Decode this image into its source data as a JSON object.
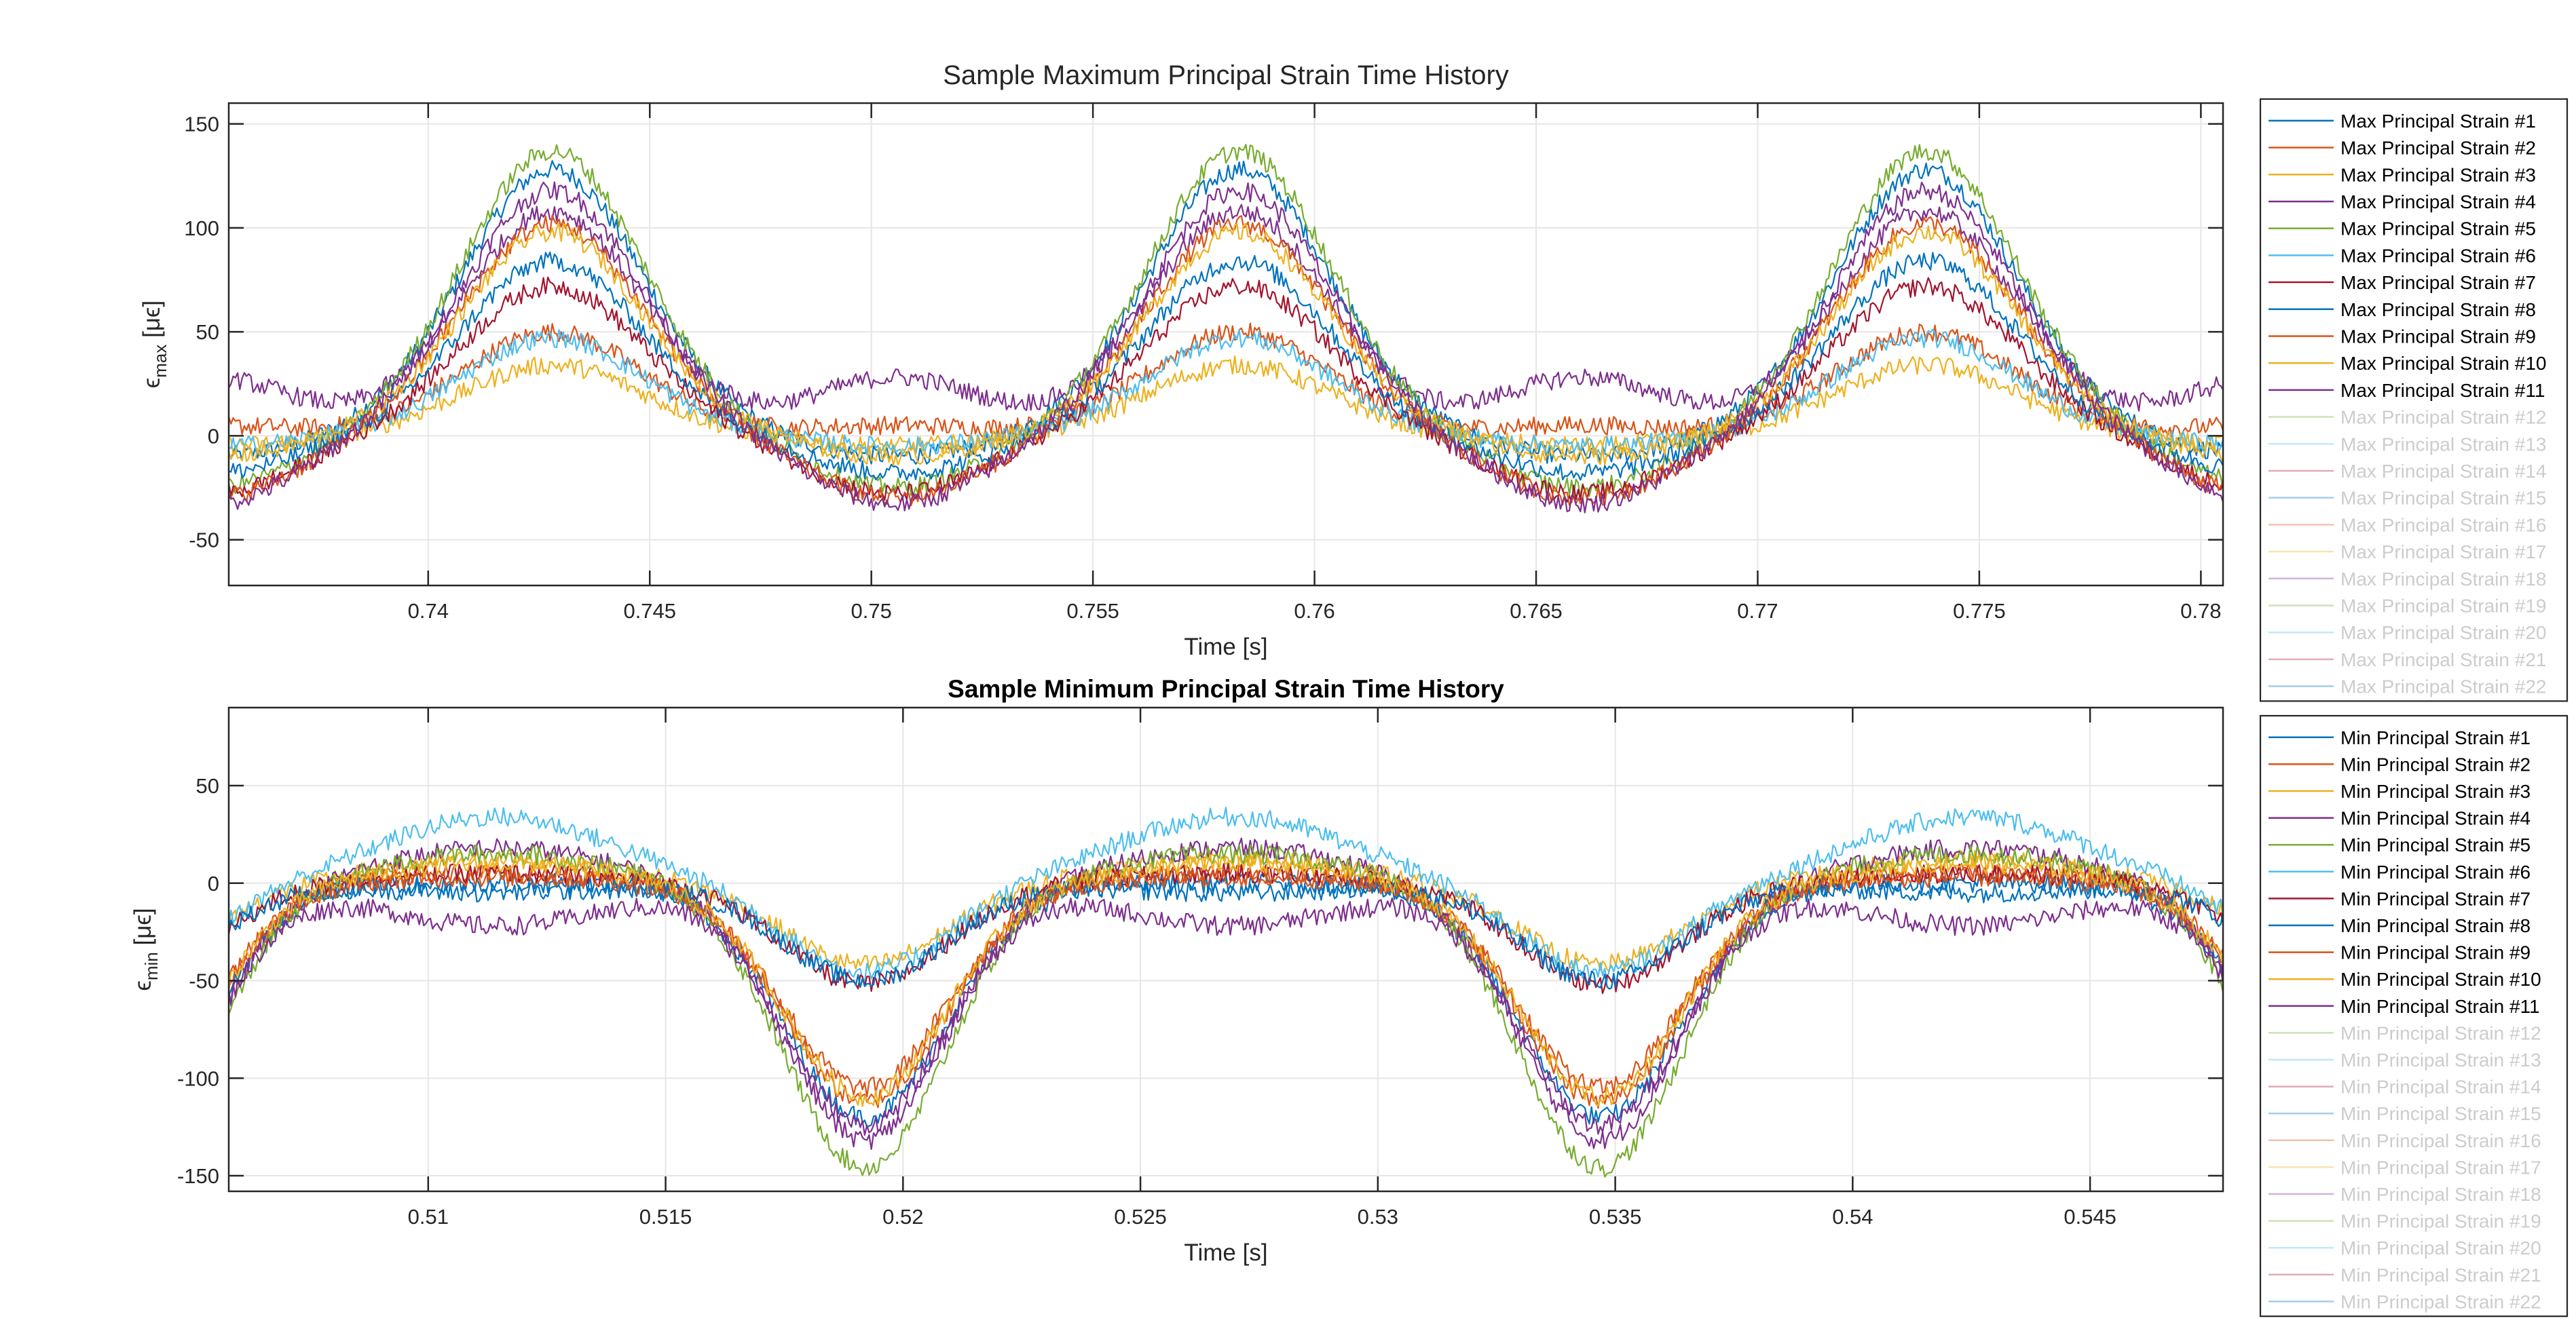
{
  "chart_data": [
    {
      "type": "line",
      "title": "Sample Maximum Principal Strain Time History",
      "xlabel": "Time [s]",
      "ylabel_main": "ϵ",
      "ylabel_sub": "max",
      "ylabel_unit": " [μϵ]",
      "xlim": [
        0.7355,
        0.7805
      ],
      "ylim": [
        -72,
        160
      ],
      "xticks": [
        0.74,
        0.745,
        0.75,
        0.755,
        0.76,
        0.765,
        0.77,
        0.775,
        0.78
      ],
      "xtick_labels": [
        "0.74",
        "0.745",
        "0.75",
        "0.755",
        "0.76",
        "0.765",
        "0.77",
        "0.775",
        "0.78"
      ],
      "yticks": [
        -50,
        0,
        50,
        100,
        150
      ],
      "ytick_labels": [
        "-50",
        "0",
        "50",
        "100",
        "150"
      ],
      "grid": true,
      "legend_placement": "outside-right",
      "period_s": 0.0155,
      "pulse_center_s": [
        0.7428,
        0.7583,
        0.7738
      ],
      "series": [
        {
          "name": "Max Principal Strain #1",
          "color": "#0072BD",
          "peak": 128,
          "mid": -10,
          "active": true
        },
        {
          "name": "Max Principal Strain #2",
          "color": "#D95319",
          "peak": 50,
          "mid": 5,
          "active": true
        },
        {
          "name": "Max Principal Strain #3",
          "color": "#EDB120",
          "peak": 34,
          "mid": -5,
          "active": true
        },
        {
          "name": "Max Principal Strain #4",
          "color": "#7E2F8E",
          "peak": 108,
          "mid": 28,
          "active": true
        },
        {
          "name": "Max Principal Strain #5",
          "color": "#77AC30",
          "peak": 137,
          "mid": -25,
          "active": true
        },
        {
          "name": "Max Principal Strain #6",
          "color": "#4DBEEE",
          "peak": 47,
          "mid": -5,
          "active": true
        },
        {
          "name": "Max Principal Strain #7",
          "color": "#A2142F",
          "peak": 72,
          "mid": -28,
          "active": true
        },
        {
          "name": "Max Principal Strain #8",
          "color": "#0072BD",
          "peak": 84,
          "mid": -18,
          "active": true
        },
        {
          "name": "Max Principal Strain #9",
          "color": "#D95319",
          "peak": 102,
          "mid": -30,
          "active": true
        },
        {
          "name": "Max Principal Strain #10",
          "color": "#EDB120",
          "peak": 98,
          "mid": -10,
          "active": true
        },
        {
          "name": "Max Principal Strain #11",
          "color": "#7E2F8E",
          "peak": 118,
          "mid": -33,
          "active": true
        },
        {
          "name": "Max Principal Strain #12",
          "color": "#77AC30",
          "active": false
        },
        {
          "name": "Max Principal Strain #13",
          "color": "#4DBEEE",
          "active": false
        },
        {
          "name": "Max Principal Strain #14",
          "color": "#A2142F",
          "active": false
        },
        {
          "name": "Max Principal Strain #15",
          "color": "#0072BD",
          "active": false
        },
        {
          "name": "Max Principal Strain #16",
          "color": "#D95319",
          "active": false
        },
        {
          "name": "Max Principal Strain #17",
          "color": "#EDB120",
          "active": false
        },
        {
          "name": "Max Principal Strain #18",
          "color": "#7E2F8E",
          "active": false
        },
        {
          "name": "Max Principal Strain #19",
          "color": "#77AC30",
          "active": false
        },
        {
          "name": "Max Principal Strain #20",
          "color": "#4DBEEE",
          "active": false
        },
        {
          "name": "Max Principal Strain #21",
          "color": "#A2142F",
          "active": false
        },
        {
          "name": "Max Principal Strain #22",
          "color": "#0072BD",
          "active": false
        }
      ]
    },
    {
      "type": "line",
      "title": "Sample Minimum Principal Strain Time History",
      "xlabel": "Time [s]",
      "ylabel_main": "ϵ",
      "ylabel_sub": "min",
      "ylabel_unit": " [μϵ]",
      "xlim": [
        0.5058,
        0.5478
      ],
      "ylim": [
        -158,
        90
      ],
      "xticks": [
        0.51,
        0.515,
        0.52,
        0.525,
        0.53,
        0.535,
        0.54,
        0.545
      ],
      "xtick_labels": [
        "0.51",
        "0.515",
        "0.52",
        "0.525",
        "0.53",
        "0.535",
        "0.54",
        "0.545"
      ],
      "yticks": [
        -150,
        -100,
        -50,
        0,
        50
      ],
      "ytick_labels": [
        "-150",
        "-100",
        "-50",
        "0",
        "50"
      ],
      "grid": true,
      "legend_placement": "outside-right",
      "period_s": 0.0155,
      "pulse_center_s": [
        0.5192,
        0.5347
      ],
      "series": [
        {
          "name": "Min Principal Strain #1",
          "color": "#0072BD",
          "trough": -120,
          "hump": 0,
          "active": true
        },
        {
          "name": "Min Principal Strain #2",
          "color": "#D95319",
          "trough": -112,
          "hump": 5,
          "active": true
        },
        {
          "name": "Min Principal Strain #3",
          "color": "#EDB120",
          "trough": -42,
          "hump": 12,
          "active": true
        },
        {
          "name": "Min Principal Strain #4",
          "color": "#7E2F8E",
          "trough": -132,
          "hump": 18,
          "active": true
        },
        {
          "name": "Min Principal Strain #5",
          "color": "#77AC30",
          "trough": -146,
          "hump": 15,
          "active": true
        },
        {
          "name": "Min Principal Strain #6",
          "color": "#4DBEEE",
          "trough": -46,
          "hump": 34,
          "active": true
        },
        {
          "name": "Min Principal Strain #7",
          "color": "#A2142F",
          "trough": -52,
          "hump": 5,
          "active": true
        },
        {
          "name": "Min Principal Strain #8",
          "color": "#0072BD",
          "trough": -50,
          "hump": -5,
          "active": true
        },
        {
          "name": "Min Principal Strain #9",
          "color": "#D95319",
          "trough": -105,
          "hump": 3,
          "active": true
        },
        {
          "name": "Min Principal Strain #10",
          "color": "#EDB120",
          "trough": -110,
          "hump": 10,
          "active": true
        },
        {
          "name": "Min Principal Strain #11",
          "color": "#7E2F8E",
          "trough": -124,
          "hump": -22,
          "active": true
        },
        {
          "name": "Min Principal Strain #12",
          "color": "#77AC30",
          "active": false
        },
        {
          "name": "Min Principal Strain #13",
          "color": "#4DBEEE",
          "active": false
        },
        {
          "name": "Min Principal Strain #14",
          "color": "#A2142F",
          "active": false
        },
        {
          "name": "Min Principal Strain #15",
          "color": "#0072BD",
          "active": false
        },
        {
          "name": "Min Principal Strain #16",
          "color": "#D95319",
          "active": false
        },
        {
          "name": "Min Principal Strain #17",
          "color": "#EDB120",
          "active": false
        },
        {
          "name": "Min Principal Strain #18",
          "color": "#7E2F8E",
          "active": false
        },
        {
          "name": "Min Principal Strain #19",
          "color": "#77AC30",
          "active": false
        },
        {
          "name": "Min Principal Strain #20",
          "color": "#4DBEEE",
          "active": false
        },
        {
          "name": "Min Principal Strain #21",
          "color": "#A2142F",
          "active": false
        },
        {
          "name": "Min Principal Strain #22",
          "color": "#0072BD",
          "active": false
        }
      ]
    }
  ]
}
